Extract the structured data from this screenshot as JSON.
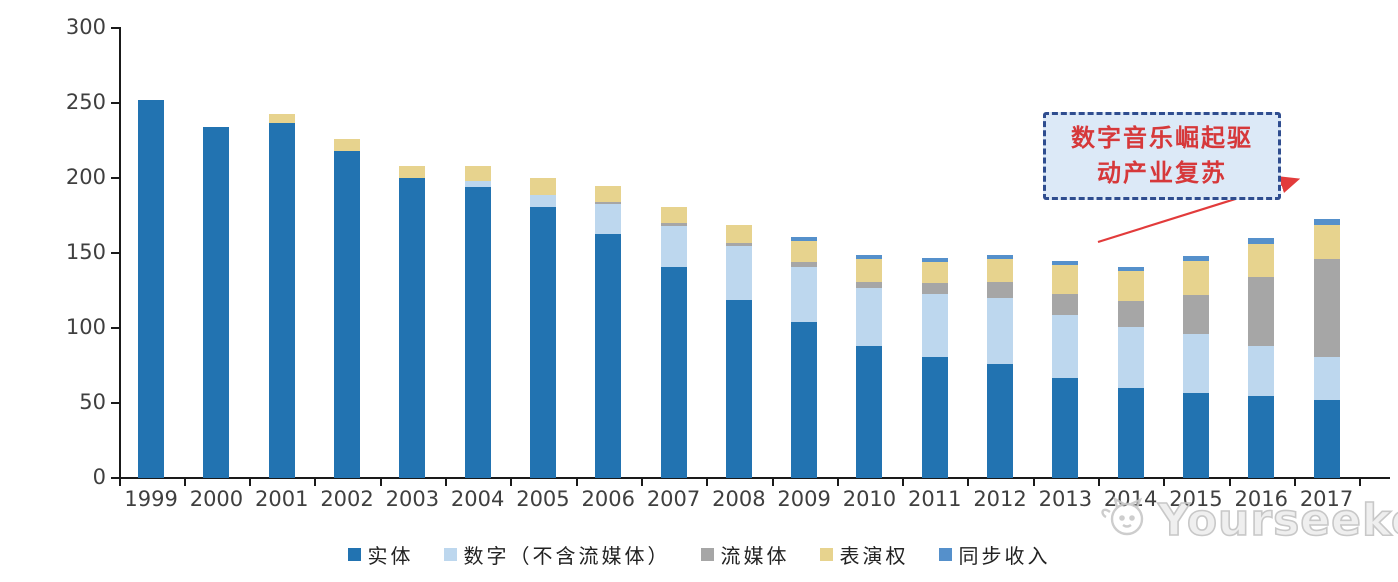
{
  "chart_data": {
    "type": "bar",
    "stacked": true,
    "title": "",
    "xlabel": "",
    "ylabel": "",
    "categories": [
      "1999",
      "2000",
      "2001",
      "2002",
      "2003",
      "2004",
      "2005",
      "2006",
      "2007",
      "2008",
      "2009",
      "2010",
      "2011",
      "2012",
      "2013",
      "2014",
      "2015",
      "2016",
      "2017"
    ],
    "series": [
      {
        "name": "实体",
        "color": "#2273b1",
        "values": [
          252,
          234,
          237,
          218,
          200,
          194,
          181,
          163,
          141,
          119,
          104,
          88,
          81,
          76,
          67,
          60,
          57,
          55,
          52
        ]
      },
      {
        "name": "数字（不含流媒体）",
        "color": "#bdd7ee",
        "values": [
          0,
          0,
          0,
          0,
          0,
          4,
          8,
          20,
          27,
          36,
          37,
          39,
          42,
          44,
          42,
          41,
          39,
          33,
          29
        ]
      },
      {
        "name": "流媒体",
        "color": "#a6a6a6",
        "values": [
          0,
          0,
          0,
          0,
          0,
          0,
          0,
          1,
          2,
          2,
          3,
          4,
          7,
          11,
          14,
          17,
          26,
          46,
          65
        ]
      },
      {
        "name": "表演权",
        "color": "#e7d38e",
        "values": [
          0,
          0,
          6,
          8,
          8,
          10,
          11,
          11,
          11,
          12,
          14,
          15,
          14,
          15,
          19,
          20,
          23,
          22,
          23
        ]
      },
      {
        "name": "同步收入",
        "color": "#5590cb",
        "values": [
          0,
          0,
          0,
          0,
          0,
          0,
          0,
          0,
          0,
          0,
          3,
          3,
          3,
          3,
          3,
          3,
          3,
          4,
          4
        ]
      }
    ],
    "ylim": [
      0,
      300
    ],
    "yticks": [
      0,
      50,
      100,
      150,
      200,
      250,
      300
    ],
    "grid": false,
    "legend_position": "bottom"
  },
  "axes": {
    "axis_color": "#1a1a1a",
    "label_color": "#3f3f3f"
  },
  "annotation": {
    "line1": "数字音乐崛起驱",
    "line2": "动产业复苏",
    "text_color": "#d6383a",
    "box_fill": "#dce9f7",
    "border_color": "#2f4d8f",
    "arrow_color": "#e23b3b"
  },
  "watermark": {
    "text": "Yourseeker",
    "icon": "cat-logo-icon",
    "color": "#c8c8c8"
  }
}
